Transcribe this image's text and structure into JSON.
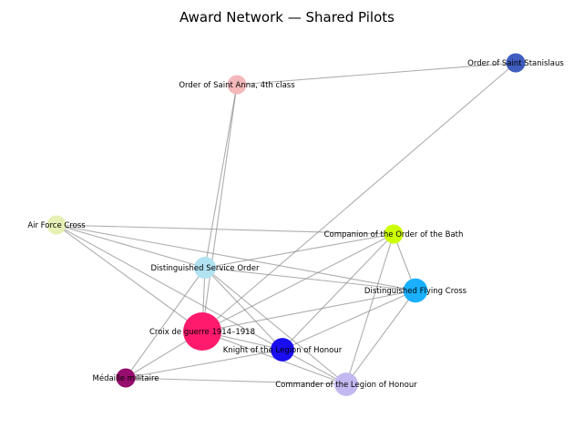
{
  "title": "Award Network — Shared Pilots",
  "nodes": [
    {
      "id": "stanislaus",
      "label": "Order of Saint Stanislaus",
      "color": "#3f5cbf",
      "weight": 1
    },
    {
      "id": "anna",
      "label": "Order of Saint Anna, 4th class",
      "color": "#f4b8bb",
      "weight": 1
    },
    {
      "id": "afc",
      "label": "Air Force Cross",
      "color": "#e6f0b4",
      "weight": 1
    },
    {
      "id": "bath",
      "label": "Companion of the Order of the Bath",
      "color": "#ccff00",
      "weight": 1
    },
    {
      "id": "dso",
      "label": "Distinguished Service Order",
      "color": "#b0e2f2",
      "weight": 1.3
    },
    {
      "id": "dfc",
      "label": "Distinguished Flying Cross",
      "color": "#1ab0ff",
      "weight": 1.6
    },
    {
      "id": "croix",
      "label": "Croix de guerre 1914–1918",
      "color": "#ff1a6e",
      "weight": 4
    },
    {
      "id": "knight",
      "label": "Knight of the Legion of Honour",
      "color": "#1a0df0",
      "weight": 1.5
    },
    {
      "id": "medaille",
      "label": "Médaille militaire",
      "color": "#960d6e",
      "weight": 1
    },
    {
      "id": "commander",
      "label": "Commander of the Legion of Honour",
      "color": "#c4b8f0",
      "weight": 1.5
    }
  ],
  "edges": [
    [
      "stanislaus",
      "anna"
    ],
    [
      "stanislaus",
      "croix"
    ],
    [
      "anna",
      "dso"
    ],
    [
      "anna",
      "croix"
    ],
    [
      "afc",
      "bath"
    ],
    [
      "afc",
      "dso"
    ],
    [
      "afc",
      "dfc"
    ],
    [
      "afc",
      "croix"
    ],
    [
      "afc",
      "knight"
    ],
    [
      "bath",
      "dso"
    ],
    [
      "bath",
      "croix"
    ],
    [
      "bath",
      "knight"
    ],
    [
      "bath",
      "commander"
    ],
    [
      "bath",
      "dfc"
    ],
    [
      "dso",
      "dfc"
    ],
    [
      "dso",
      "croix"
    ],
    [
      "dso",
      "knight"
    ],
    [
      "dso",
      "medaille"
    ],
    [
      "dso",
      "commander"
    ],
    [
      "dfc",
      "croix"
    ],
    [
      "dfc",
      "knight"
    ],
    [
      "dfc",
      "commander"
    ],
    [
      "croix",
      "knight"
    ],
    [
      "croix",
      "medaille"
    ],
    [
      "croix",
      "commander"
    ],
    [
      "knight",
      "medaille"
    ],
    [
      "knight",
      "commander"
    ],
    [
      "medaille",
      "commander"
    ]
  ]
}
